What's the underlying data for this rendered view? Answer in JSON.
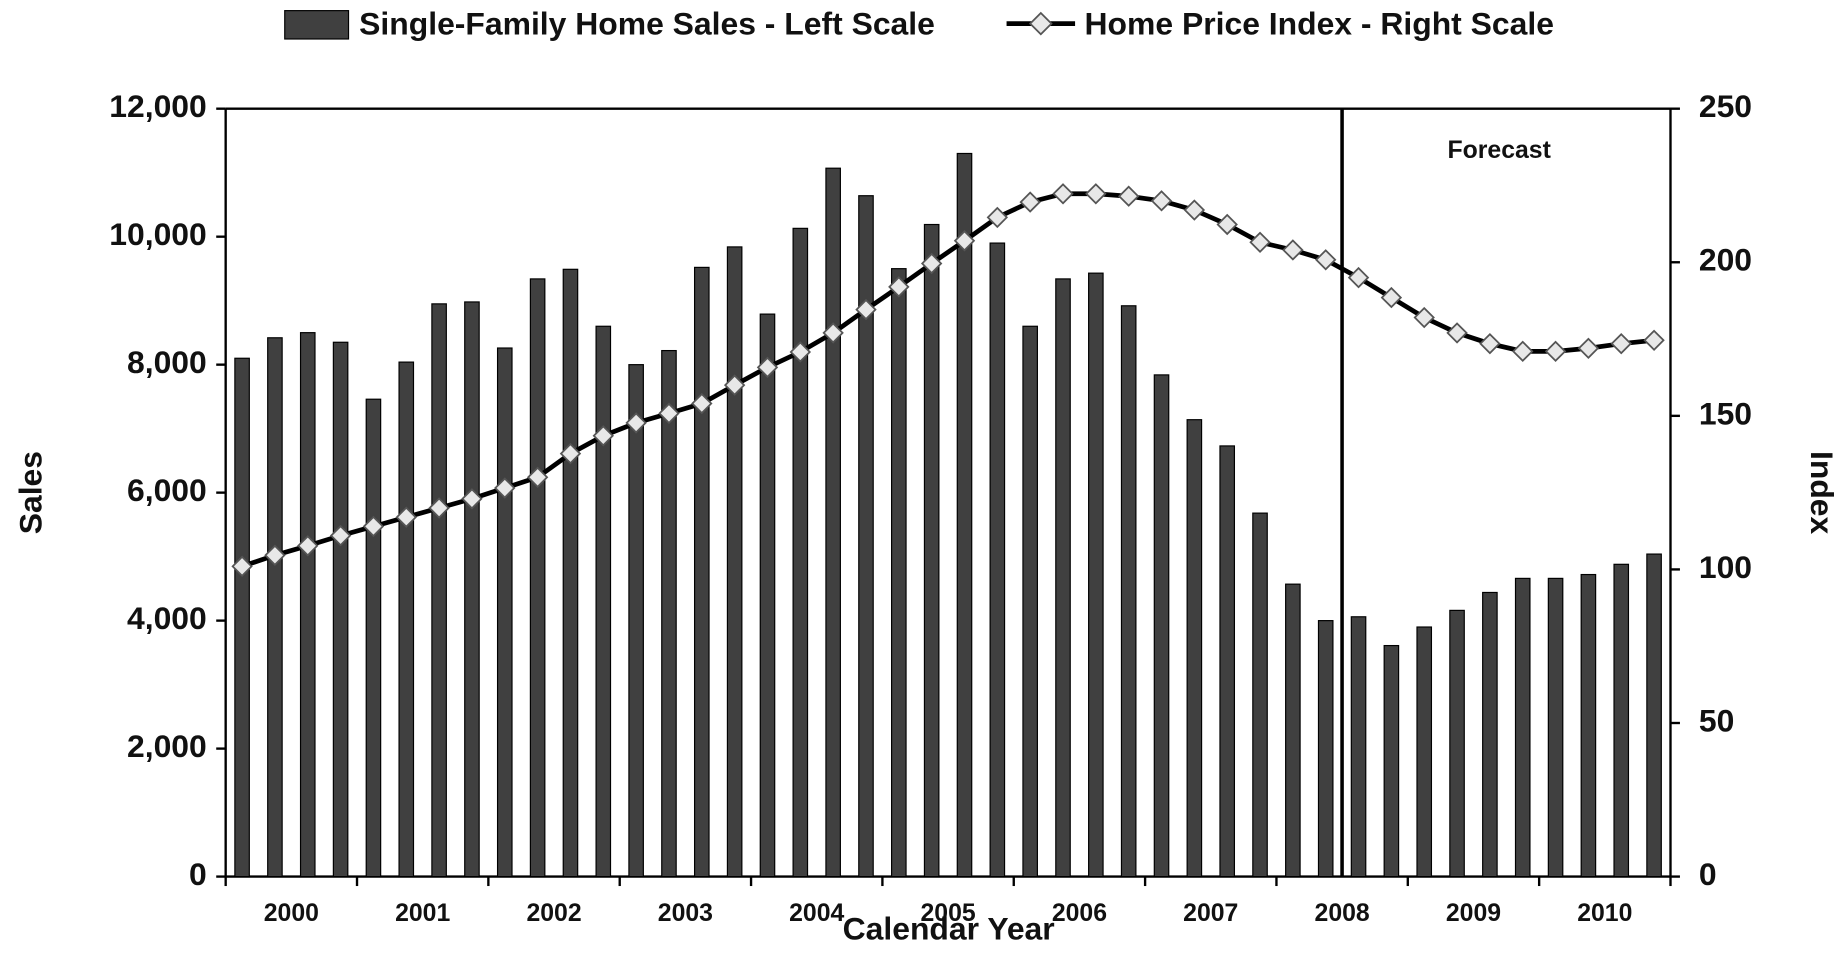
{
  "chart_data": {
    "type": "bar",
    "xlabel": "Calendar Year",
    "ylabel": "Sales",
    "y2label": "Index",
    "annotation": "Forecast",
    "categories": [
      "2000",
      null,
      null,
      null,
      "2001",
      null,
      null,
      null,
      "2002",
      null,
      null,
      null,
      "2003",
      null,
      null,
      null,
      "2004",
      null,
      null,
      null,
      "2005",
      null,
      null,
      null,
      "2006",
      null,
      null,
      null,
      "2007",
      null,
      null,
      null,
      "2008",
      null,
      null,
      null,
      "2009",
      null,
      null,
      null,
      "2010",
      null,
      null,
      null
    ],
    "series": [
      {
        "name": "Single-Family Home Sales - Left Scale",
        "type": "bar",
        "color": "#404040",
        "values": [
          8100,
          8420,
          8500,
          8350,
          7460,
          8040,
          8950,
          8980,
          8260,
          9340,
          9490,
          8600,
          8000,
          8220,
          9520,
          9840,
          8790,
          10130,
          11070,
          10640,
          9500,
          10190,
          11300,
          9900,
          8600,
          9340,
          9430,
          8920,
          7840,
          7140,
          6730,
          5680,
          4570,
          4000,
          4060,
          3610,
          3900,
          4160,
          4440,
          4660,
          4660,
          4720,
          4880,
          5040
        ]
      },
      {
        "name": "Home Price Index - Right Scale",
        "type": "line",
        "axis": "y2",
        "color": "#000000",
        "marker_color": "#e8e8e8",
        "values": [
          101,
          104.6,
          107.7,
          111,
          114,
          117,
          120,
          123,
          126.5,
          130,
          137.7,
          143.5,
          147.7,
          150.8,
          154,
          160,
          165.8,
          170.8,
          177,
          184.6,
          192,
          199.6,
          207,
          214.6,
          219.6,
          222.3,
          222.3,
          221.5,
          220,
          217,
          212.3,
          206.5,
          204,
          200.8,
          195,
          188.5,
          182,
          177,
          173.5,
          171,
          171,
          172,
          173.5,
          174.6
        ]
      }
    ],
    "ylim": [
      0,
      12000
    ],
    "yticks": [
      0,
      {
        "value": 2000,
        "label": "2,000"
      },
      {
        "value": 4000,
        "label": "4,000"
      },
      {
        "value": 6000,
        "label": "6,000"
      },
      {
        "value": 8000,
        "label": "8,000"
      },
      {
        "value": 10000,
        "label": "10,000"
      },
      {
        "value": 12000,
        "label": "12,000"
      }
    ],
    "y2lim": [
      0,
      250
    ],
    "y2ticks": [
      0,
      50,
      100,
      150,
      200,
      250
    ],
    "grid": false
  }
}
